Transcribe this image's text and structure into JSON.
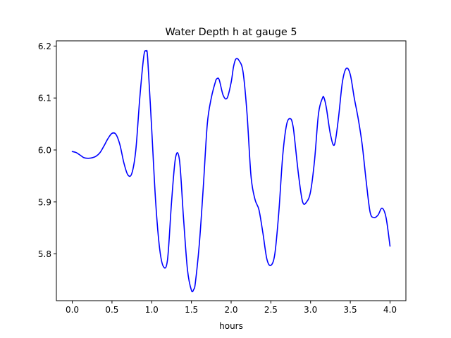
{
  "chart_data": {
    "type": "line",
    "title": "Water Depth h at gauge 5",
    "xlabel": "hours",
    "ylabel": "",
    "xlim": [
      -0.2,
      4.2
    ],
    "ylim": [
      5.71,
      6.21
    ],
    "xticks": [
      0.0,
      0.5,
      1.0,
      1.5,
      2.0,
      2.5,
      3.0,
      3.5,
      4.0
    ],
    "xtick_labels": [
      "0.0",
      "0.5",
      "1.0",
      "1.5",
      "2.0",
      "2.5",
      "3.0",
      "3.5",
      "4.0"
    ],
    "yticks": [
      5.8,
      5.9,
      6.0,
      6.1,
      6.2
    ],
    "ytick_labels": [
      "5.8",
      "5.9",
      "6.0",
      "6.1",
      "6.2"
    ],
    "grid": false,
    "legend": "none",
    "series": [
      {
        "color": "#0000ff",
        "x": [
          0.0,
          0.05,
          0.1,
          0.15,
          0.2,
          0.25,
          0.3,
          0.35,
          0.4,
          0.45,
          0.5,
          0.55,
          0.6,
          0.65,
          0.7,
          0.75,
          0.8,
          0.85,
          0.9,
          0.93,
          0.95,
          1.0,
          1.05,
          1.1,
          1.15,
          1.2,
          1.25,
          1.3,
          1.35,
          1.4,
          1.45,
          1.5,
          1.53,
          1.55,
          1.6,
          1.65,
          1.7,
          1.75,
          1.8,
          1.82,
          1.85,
          1.9,
          1.95,
          2.0,
          2.03,
          2.06,
          2.1,
          2.15,
          2.2,
          2.25,
          2.3,
          2.35,
          2.4,
          2.45,
          2.5,
          2.55,
          2.6,
          2.65,
          2.7,
          2.75,
          2.78,
          2.8,
          2.85,
          2.9,
          2.95,
          3.0,
          3.05,
          3.1,
          3.15,
          3.17,
          3.2,
          3.25,
          3.3,
          3.35,
          3.4,
          3.45,
          3.5,
          3.55,
          3.6,
          3.65,
          3.7,
          3.75,
          3.8,
          3.85,
          3.9,
          3.95,
          4.0
        ],
        "y": [
          5.997,
          5.995,
          5.99,
          5.985,
          5.984,
          5.985,
          5.988,
          5.995,
          6.008,
          6.022,
          6.032,
          6.03,
          6.01,
          5.975,
          5.952,
          5.955,
          6.0,
          6.1,
          6.18,
          6.19,
          6.175,
          6.04,
          5.9,
          5.81,
          5.775,
          5.79,
          5.9,
          5.985,
          5.98,
          5.87,
          5.77,
          5.73,
          5.732,
          5.745,
          5.82,
          5.93,
          6.05,
          6.1,
          6.13,
          6.137,
          6.135,
          6.105,
          6.1,
          6.13,
          6.16,
          6.175,
          6.172,
          6.15,
          6.07,
          5.95,
          5.905,
          5.885,
          5.84,
          5.79,
          5.778,
          5.8,
          5.88,
          5.99,
          6.05,
          6.06,
          6.045,
          6.02,
          5.95,
          5.9,
          5.9,
          5.92,
          5.98,
          6.07,
          6.1,
          6.1,
          6.08,
          6.03,
          6.01,
          6.06,
          6.13,
          6.157,
          6.145,
          6.1,
          6.06,
          6.01,
          5.94,
          5.88,
          5.87,
          5.875,
          5.888,
          5.87,
          5.815
        ]
      }
    ]
  }
}
